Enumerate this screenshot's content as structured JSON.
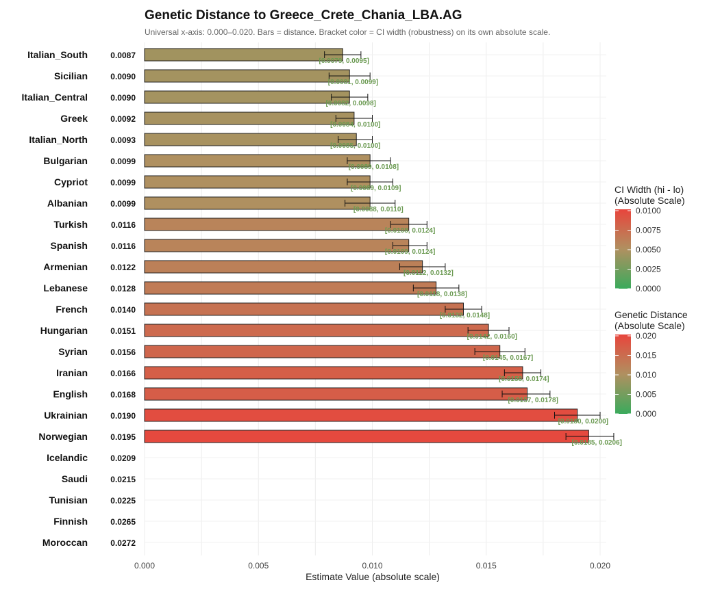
{
  "chart_data": {
    "type": "bar",
    "orientation": "horizontal",
    "title": "Genetic Distance to Greece_Crete_Chania_LBA.AG",
    "subtitle": "Universal x-axis: 0.000–0.020. Bars = distance. Bracket color = CI width (robustness) on its own absolute scale.",
    "xlabel": "Estimate Value (absolute scale)",
    "xlim": [
      0,
      0.0205
    ],
    "xticks": [
      "0.000",
      "0.005",
      "0.010",
      "0.015",
      "0.020"
    ],
    "xtick_values": [
      0,
      0.005,
      0.01,
      0.015,
      0.02
    ],
    "grid": true,
    "categories": [
      "Italian_South",
      "Sicilian",
      "Italian_Central",
      "Greek",
      "Italian_North",
      "Bulgarian",
      "Cypriot",
      "Albanian",
      "Turkish",
      "Spanish",
      "Armenian",
      "Lebanese",
      "French",
      "Hungarian",
      "Syrian",
      "Iranian",
      "English",
      "Ukrainian",
      "Norwegian",
      "Icelandic",
      "Saudi",
      "Tunisian",
      "Finnish",
      "Moroccan"
    ],
    "value_labels": [
      "0.0087",
      "0.0090",
      "0.0090",
      "0.0092",
      "0.0093",
      "0.0099",
      "0.0099",
      "0.0099",
      "0.0116",
      "0.0116",
      "0.0122",
      "0.0128",
      "0.0140",
      "0.0151",
      "0.0156",
      "0.0166",
      "0.0168",
      "0.0190",
      "0.0195",
      "0.0209",
      "0.0215",
      "0.0225",
      "0.0265",
      "0.0272"
    ],
    "values": [
      0.0087,
      0.009,
      0.009,
      0.0092,
      0.0093,
      0.0099,
      0.0099,
      0.0099,
      0.0116,
      0.0116,
      0.0122,
      0.0128,
      0.014,
      0.0151,
      0.0156,
      0.0166,
      0.0168,
      0.019,
      0.0195,
      0.0209,
      0.0215,
      0.0225,
      0.0265,
      0.0272
    ],
    "ci_lo": [
      0.0079,
      0.0081,
      0.0082,
      0.0084,
      0.0085,
      0.0089,
      0.0089,
      0.0088,
      0.0108,
      0.0109,
      0.0112,
      0.0118,
      0.0132,
      0.0142,
      0.0145,
      0.0158,
      0.0157,
      0.018,
      0.0185,
      null,
      null,
      null,
      null,
      null
    ],
    "ci_hi": [
      0.0095,
      0.0099,
      0.0098,
      0.01,
      0.01,
      0.0108,
      0.0109,
      0.011,
      0.0124,
      0.0124,
      0.0132,
      0.0138,
      0.0148,
      0.016,
      0.0167,
      0.0174,
      0.0178,
      0.02,
      0.0206,
      null,
      null,
      null,
      null,
      null
    ],
    "ci_labels": [
      "[0.0079, 0.0095]",
      "[0.0081, 0.0099]",
      "[0.0082, 0.0098]",
      "[0.0084, 0.0100]",
      "[0.0085, 0.0100]",
      "[0.0089, 0.0108]",
      "[0.0089, 0.0109]",
      "[0.0088, 0.0110]",
      "[0.0108, 0.0124]",
      "[0.0109, 0.0124]",
      "[0.0112, 0.0132]",
      "[0.0118, 0.0138]",
      "[0.0132, 0.0148]",
      "[0.0142, 0.0160]",
      "[0.0145, 0.0167]",
      "[0.0158, 0.0174]",
      "[0.0157, 0.0178]",
      "[0.0180, 0.0200]",
      "[0.0185, 0.0206]",
      "",
      "",
      "",
      "",
      ""
    ],
    "legends": [
      {
        "title_line1": "CI Width (hi - lo)",
        "title_line2": "(Absolute Scale)",
        "ticks": [
          "0.0100",
          "0.0075",
          "0.0050",
          "0.0025",
          "0.0000"
        ],
        "colors": [
          "#e8453c",
          "#b09060",
          "#3aaa5c"
        ]
      },
      {
        "title_line1": "Genetic Distance",
        "title_line2": "(Absolute Scale)",
        "ticks": [
          "0.020",
          "0.015",
          "0.010",
          "0.005",
          "0.000"
        ],
        "colors": [
          "#e8453c",
          "#b09060",
          "#3aaa5c"
        ]
      }
    ],
    "legend_placement": "right"
  }
}
